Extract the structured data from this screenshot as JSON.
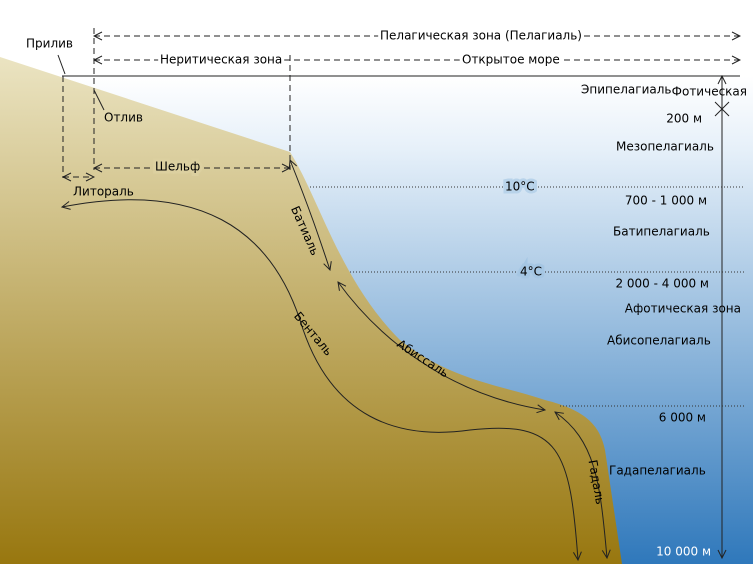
{
  "zones": {
    "pelagic": "Пелагическая зона (Пелагиаль)",
    "neritic": "Неритическая зона",
    "open_sea": "Открытое море",
    "high_tide": "Прилив",
    "low_tide": "Отлив",
    "shelf": "Шельф",
    "littoral": "Литораль",
    "bathyal": "Батиаль",
    "benthal": "Бенталь",
    "abyssal": "Абиссаль",
    "hadal": "Гадаль",
    "photic": "Фотическая",
    "aphotic": "Афотическая зона"
  },
  "layers": [
    "Эпипелагиаль",
    "Мезопелагиаль",
    "Батипелагиаль",
    "Абисопелагиаль",
    "Гадапелагиаль"
  ],
  "depths": [
    "200 м",
    "700 - 1 000 м",
    "2 000 - 4 000 м",
    "6 000 м",
    "10 000 м"
  ],
  "temperatures": [
    "10°C",
    "4°C"
  ]
}
